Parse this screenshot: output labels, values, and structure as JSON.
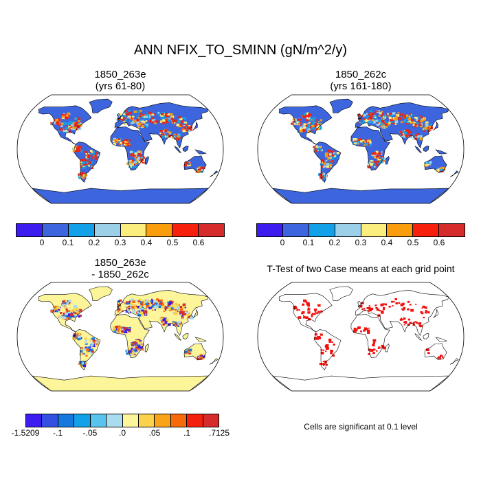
{
  "figure": {
    "title": "ANN NFIX_TO_SMINN (gN/m^2/y)"
  },
  "panels": {
    "top_left": {
      "title_line1": "1850_263e",
      "title_line2": "(yrs 61-80)"
    },
    "top_right": {
      "title_line1": "1850_262c",
      "title_line2": "(yrs 161-180)"
    },
    "bottom_left": {
      "title_line1": "1850_263e",
      "title_line2": "- 1850_262c"
    },
    "bottom_right": {
      "title": "T-Test of two Case means at each grid point",
      "note": "Cells are significant at 0.1 level"
    }
  },
  "colorbars": {
    "absolute": {
      "colors": [
        "#3d1cf0",
        "#3d66de",
        "#12a1e8",
        "#9ccfe8",
        "#fbee7c",
        "#f99d0c",
        "#f7200d",
        "#d52b2b"
      ],
      "labels": [
        "0",
        "0.1",
        "0.2",
        "0.3",
        "0.4",
        "0.5",
        "0.6"
      ]
    },
    "difference": {
      "colors": [
        "#3d1cf0",
        "#3450e2",
        "#1478dc",
        "#12a1e8",
        "#58c4ee",
        "#aadcf0",
        "#fdf59a",
        "#fbd24a",
        "#f9a318",
        "#f66a0c",
        "#f2200d",
        "#d52b2b"
      ],
      "labels": [
        "-1.5209",
        "-.1",
        "-.05",
        ".0",
        ".05",
        ".1",
        ".7125"
      ]
    }
  },
  "colors": {
    "land_base_abs": "#3d66de",
    "land_base_diff": "#fdf59a",
    "significant": "#f2100d",
    "coast": "#000000"
  }
}
